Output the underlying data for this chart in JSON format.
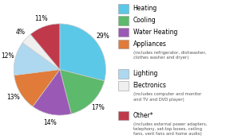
{
  "labels": [
    "Heating",
    "Cooling",
    "Water Heating",
    "Appliances",
    "Lighting",
    "Electronics",
    "Other*"
  ],
  "values": [
    29,
    17,
    14,
    13,
    12,
    4,
    11
  ],
  "colors": [
    "#5BC8E8",
    "#5DB96B",
    "#9B59B6",
    "#E07B39",
    "#ADD8F0",
    "#EFEFEF",
    "#C0394B"
  ],
  "startangle": 90,
  "counterclock": false,
  "pctdistance": 1.18,
  "bg_color": "#FFFFFF",
  "wedge_edgecolor": "#CCCCCC",
  "wedge_linewidth": 0.5,
  "pct_fontsize": 5.5,
  "legend_items": [
    {
      "name": "Heating",
      "sub": ""
    },
    {
      "name": "Cooling",
      "sub": ""
    },
    {
      "name": "Water Heating",
      "sub": ""
    },
    {
      "name": "Appliances",
      "sub": "(includes refrigerator, dishwasher,\nclothes washer and dryer)"
    },
    {
      "name": "Lighting",
      "sub": ""
    },
    {
      "name": "Electronics",
      "sub": "(includes computer and monitor\nand TV and DVD player)"
    },
    {
      "name": "Other*",
      "sub": "(includes external power adapters,\ntelephony, set-top boxes, ceiling\nfans, vent fans and home audio)"
    }
  ]
}
